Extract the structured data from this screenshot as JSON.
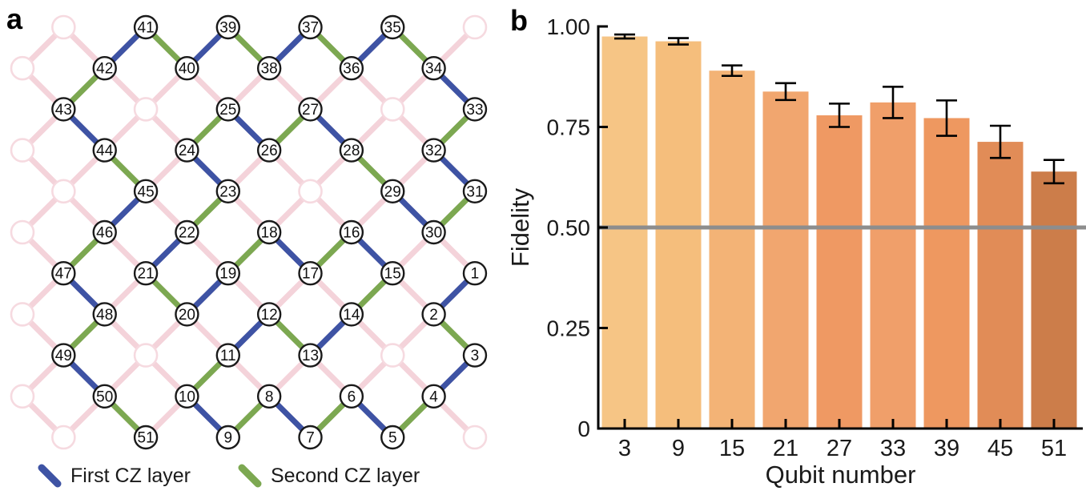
{
  "panel_a": {
    "label": "a",
    "legend": [
      {
        "label": "First CZ layer",
        "color": "#3E53A4"
      },
      {
        "label": "Second CZ layer",
        "color": "#7CA851"
      }
    ],
    "colors": {
      "first_cz": "#3E53A4",
      "second_cz": "#7CA851",
      "coupler": "#F4D3DA",
      "unused_qubit_stroke": "#F6DAE0",
      "qubit_stroke": "#1A1A1A",
      "qubit_fill": "#FFFFFF",
      "qubit_number": "#111111"
    },
    "qubits": [
      {
        "n": 1,
        "i": 11,
        "j": 6
      },
      {
        "n": 2,
        "i": 10,
        "j": 7
      },
      {
        "n": 3,
        "i": 11,
        "j": 8
      },
      {
        "n": 4,
        "i": 10,
        "j": 9
      },
      {
        "n": 5,
        "i": 9,
        "j": 10
      },
      {
        "n": 6,
        "i": 8,
        "j": 9
      },
      {
        "n": 7,
        "i": 7,
        "j": 10
      },
      {
        "n": 8,
        "i": 6,
        "j": 9
      },
      {
        "n": 9,
        "i": 5,
        "j": 10
      },
      {
        "n": 10,
        "i": 4,
        "j": 9
      },
      {
        "n": 11,
        "i": 5,
        "j": 8
      },
      {
        "n": 12,
        "i": 6,
        "j": 7
      },
      {
        "n": 13,
        "i": 7,
        "j": 8
      },
      {
        "n": 14,
        "i": 8,
        "j": 7
      },
      {
        "n": 15,
        "i": 9,
        "j": 6
      },
      {
        "n": 16,
        "i": 8,
        "j": 5
      },
      {
        "n": 17,
        "i": 7,
        "j": 6
      },
      {
        "n": 18,
        "i": 6,
        "j": 5
      },
      {
        "n": 19,
        "i": 5,
        "j": 6
      },
      {
        "n": 20,
        "i": 4,
        "j": 7
      },
      {
        "n": 21,
        "i": 3,
        "j": 6
      },
      {
        "n": 22,
        "i": 4,
        "j": 5
      },
      {
        "n": 23,
        "i": 5,
        "j": 4
      },
      {
        "n": 24,
        "i": 4,
        "j": 3
      },
      {
        "n": 25,
        "i": 5,
        "j": 2
      },
      {
        "n": 26,
        "i": 6,
        "j": 3
      },
      {
        "n": 27,
        "i": 7,
        "j": 2
      },
      {
        "n": 28,
        "i": 8,
        "j": 3
      },
      {
        "n": 29,
        "i": 9,
        "j": 4
      },
      {
        "n": 30,
        "i": 10,
        "j": 5
      },
      {
        "n": 31,
        "i": 11,
        "j": 4
      },
      {
        "n": 32,
        "i": 10,
        "j": 3
      },
      {
        "n": 33,
        "i": 11,
        "j": 2
      },
      {
        "n": 34,
        "i": 10,
        "j": 1
      },
      {
        "n": 35,
        "i": 9,
        "j": 0
      },
      {
        "n": 36,
        "i": 8,
        "j": 1
      },
      {
        "n": 37,
        "i": 7,
        "j": 0
      },
      {
        "n": 38,
        "i": 6,
        "j": 1
      },
      {
        "n": 39,
        "i": 5,
        "j": 0
      },
      {
        "n": 40,
        "i": 4,
        "j": 1
      },
      {
        "n": 41,
        "i": 3,
        "j": 0
      },
      {
        "n": 42,
        "i": 2,
        "j": 1
      },
      {
        "n": 43,
        "i": 1,
        "j": 2
      },
      {
        "n": 44,
        "i": 2,
        "j": 3
      },
      {
        "n": 45,
        "i": 3,
        "j": 4
      },
      {
        "n": 46,
        "i": 2,
        "j": 5
      },
      {
        "n": 47,
        "i": 1,
        "j": 6
      },
      {
        "n": 48,
        "i": 2,
        "j": 7
      },
      {
        "n": 49,
        "i": 1,
        "j": 8
      },
      {
        "n": 50,
        "i": 2,
        "j": 9
      },
      {
        "n": 51,
        "i": 3,
        "j": 10
      }
    ],
    "unused_sites": [
      [
        1,
        0
      ],
      [
        11,
        0
      ],
      [
        0,
        1
      ],
      [
        3,
        2
      ],
      [
        9,
        2
      ],
      [
        0,
        3
      ],
      [
        1,
        4
      ],
      [
        7,
        4
      ],
      [
        0,
        5
      ],
      [
        0,
        7
      ],
      [
        3,
        8
      ],
      [
        9,
        8
      ],
      [
        0,
        9
      ],
      [
        1,
        10
      ],
      [
        11,
        10
      ]
    ],
    "first_cz_pairs": [
      [
        1,
        2
      ],
      [
        3,
        4
      ],
      [
        5,
        6
      ],
      [
        7,
        8
      ],
      [
        9,
        10
      ],
      [
        11,
        12
      ],
      [
        13,
        14
      ],
      [
        15,
        16
      ],
      [
        17,
        18
      ],
      [
        19,
        20
      ],
      [
        21,
        22
      ],
      [
        23,
        24
      ],
      [
        25,
        26
      ],
      [
        27,
        28
      ],
      [
        29,
        30
      ],
      [
        31,
        32
      ],
      [
        33,
        34
      ],
      [
        35,
        36
      ],
      [
        37,
        38
      ],
      [
        39,
        40
      ],
      [
        41,
        42
      ],
      [
        43,
        44
      ],
      [
        45,
        46
      ],
      [
        47,
        48
      ],
      [
        49,
        50
      ]
    ],
    "second_cz_pairs": [
      [
        2,
        3
      ],
      [
        4,
        5
      ],
      [
        6,
        7
      ],
      [
        8,
        9
      ],
      [
        10,
        11
      ],
      [
        12,
        13
      ],
      [
        14,
        15
      ],
      [
        16,
        17
      ],
      [
        18,
        19
      ],
      [
        20,
        21
      ],
      [
        22,
        23
      ],
      [
        24,
        25
      ],
      [
        26,
        27
      ],
      [
        28,
        29
      ],
      [
        30,
        31
      ],
      [
        32,
        33
      ],
      [
        34,
        35
      ],
      [
        36,
        37
      ],
      [
        38,
        39
      ],
      [
        40,
        41
      ],
      [
        42,
        43
      ],
      [
        44,
        45
      ],
      [
        46,
        47
      ],
      [
        48,
        49
      ],
      [
        50,
        51
      ]
    ]
  },
  "panel_b": {
    "label": "b"
  },
  "chart_data": {
    "type": "bar",
    "title": "",
    "categories": [
      "3",
      "9",
      "15",
      "21",
      "27",
      "33",
      "39",
      "45",
      "51"
    ],
    "values": [
      0.975,
      0.963,
      0.89,
      0.838,
      0.779,
      0.811,
      0.772,
      0.713,
      0.639
    ],
    "errors": [
      0.005,
      0.008,
      0.013,
      0.021,
      0.029,
      0.039,
      0.044,
      0.04,
      0.029
    ],
    "xlabel": "Qubit number",
    "ylabel": "Fidelity",
    "ylim": [
      0,
      1.0
    ],
    "yticks": [
      0,
      0.25,
      0.5,
      0.75,
      1.0
    ],
    "ytick_labels": [
      "0",
      "0.25",
      "0.50",
      "0.75",
      "1.00"
    ],
    "reference_line": {
      "y": 0.5,
      "color": "#8D8D8D"
    },
    "bar_colors": [
      "#F6C585",
      "#F5BE7C",
      "#F3B376",
      "#F1A66F",
      "#EF9963",
      "#F09F6A",
      "#EE9860",
      "#E18C57",
      "#CC7D4A"
    ],
    "grid": false,
    "legend_position": "none"
  }
}
